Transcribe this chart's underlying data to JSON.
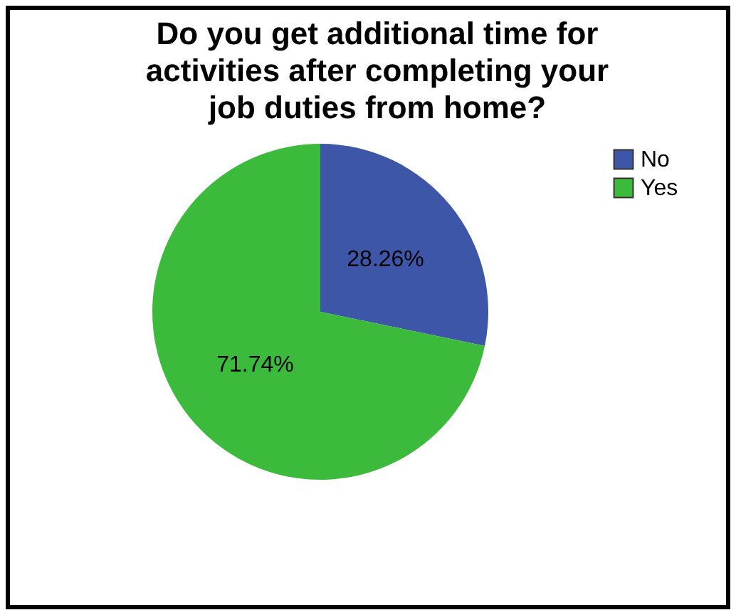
{
  "chart_data": {
    "type": "pie",
    "title": "Do you get additional time for activities after completing your job duties from home?",
    "categories": [
      "No",
      "Yes"
    ],
    "values": [
      28.26,
      71.74
    ],
    "colors": [
      "#3e56a8",
      "#3cba3c"
    ],
    "value_labels": [
      "28.26%",
      "71.74%"
    ],
    "legend": "top right"
  }
}
